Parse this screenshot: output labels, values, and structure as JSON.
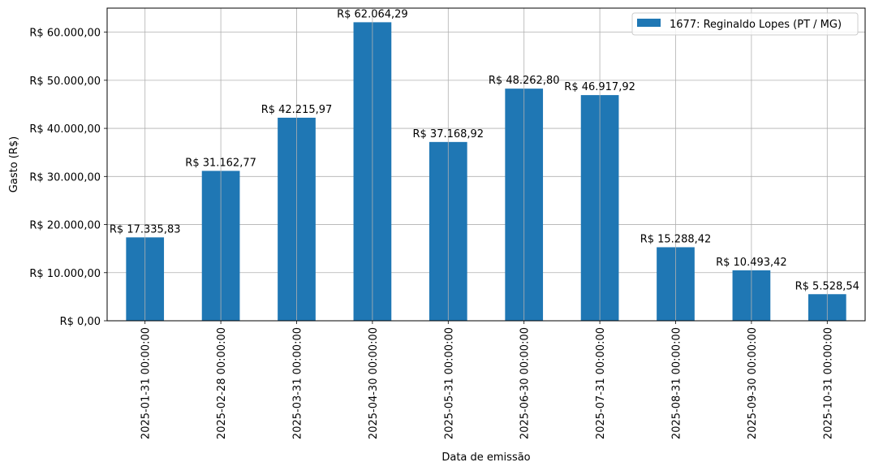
{
  "chart_data": {
    "type": "bar",
    "categories": [
      "2025-01-31 00:00:00",
      "2025-02-28 00:00:00",
      "2025-03-31 00:00:00",
      "2025-04-30 00:00:00",
      "2025-05-31 00:00:00",
      "2025-06-30 00:00:00",
      "2025-07-31 00:00:00",
      "2025-08-31 00:00:00",
      "2025-09-30 00:00:00",
      "2025-10-31 00:00:00"
    ],
    "series": [
      {
        "name": "1677: Reginaldo Lopes (PT / MG)",
        "color": "#1f77b4",
        "values": [
          17335.83,
          31162.77,
          42215.97,
          62064.29,
          37168.92,
          48262.8,
          46917.92,
          15288.42,
          10493.42,
          5528.54
        ],
        "labels": [
          "R$ 17.335,83",
          "R$ 31.162,77",
          "R$ 42.215,97",
          "R$ 62.064,29",
          "R$ 37.168,92",
          "R$ 48.262,80",
          "R$ 46.917,92",
          "R$ 15.288,42",
          "R$ 10.493,42",
          "R$ 5.528,54"
        ]
      }
    ],
    "xlabel": "Data de emissão",
    "ylabel": "Gasto (R$)",
    "ylim": [
      0,
      65000
    ],
    "yticks": [
      0,
      10000,
      20000,
      30000,
      40000,
      50000,
      60000
    ],
    "ytick_labels": [
      "R$ 0,00",
      "R$ 10.000,00",
      "R$ 20.000,00",
      "R$ 30.000,00",
      "R$ 40.000,00",
      "R$ 50.000,00",
      "R$ 60.000,00"
    ],
    "grid": true,
    "legend": "top-right"
  }
}
